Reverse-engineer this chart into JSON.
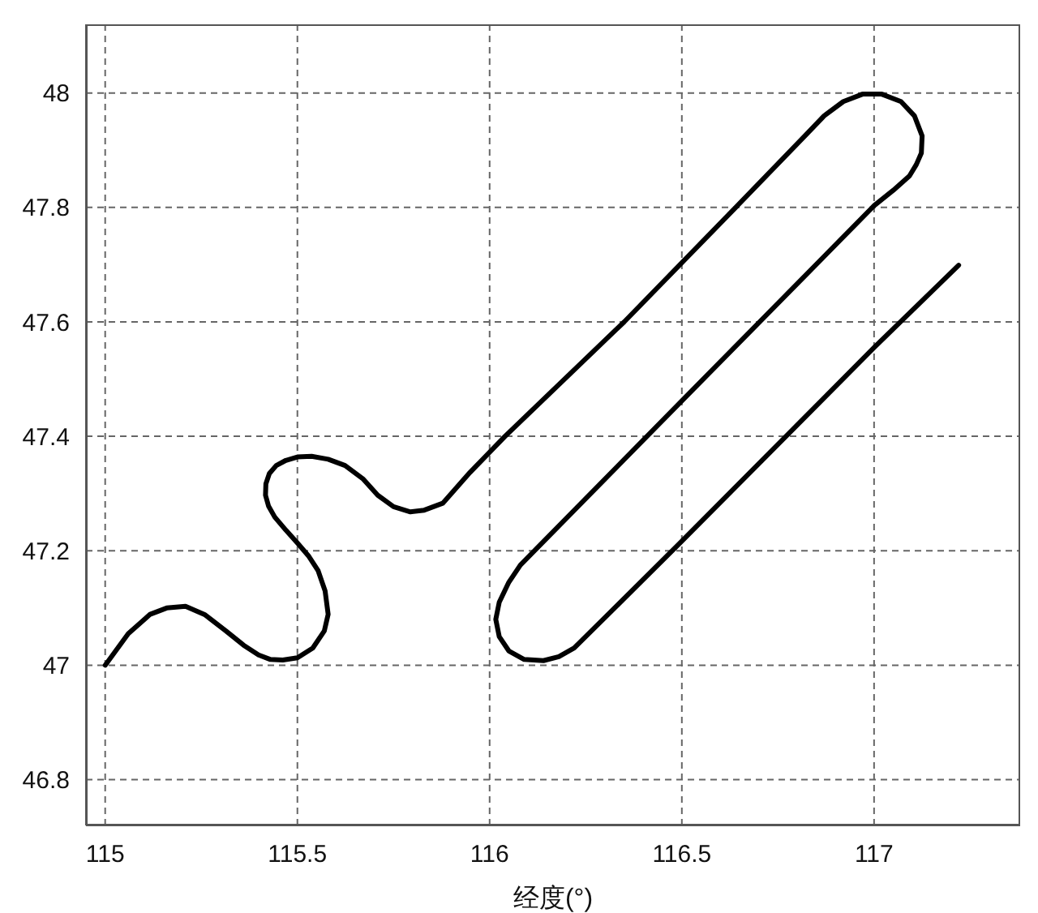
{
  "chart_data": {
    "type": "line",
    "xlabel": "经度(°)",
    "color": "#000000",
    "marker": "none",
    "line_style": "solid",
    "grid": true,
    "x": [
      115.0,
      115.06,
      115.117,
      115.16,
      115.209,
      115.26,
      115.314,
      115.36,
      115.399,
      115.43,
      115.462,
      115.5,
      115.54,
      115.57,
      115.58,
      115.572,
      115.554,
      115.53,
      115.502,
      115.47,
      115.441,
      115.425,
      115.417,
      115.418,
      115.427,
      115.445,
      115.47,
      115.5,
      115.537,
      115.58,
      115.624,
      115.67,
      115.709,
      115.75,
      115.794,
      115.83,
      115.878,
      115.949,
      116.04,
      116.35,
      116.64,
      116.82,
      116.87,
      116.92,
      116.97,
      117.02,
      117.07,
      117.105,
      117.125,
      117.123,
      117.11,
      117.092,
      117.05,
      117.0,
      116.5,
      116.08,
      116.05,
      116.025,
      116.016,
      116.025,
      116.05,
      116.09,
      116.14,
      116.18,
      116.22,
      116.49,
      117.0,
      117.22
    ],
    "values": [
      47.0,
      47.055,
      47.089,
      47.1,
      47.103,
      47.088,
      47.06,
      47.035,
      47.018,
      47.01,
      47.009,
      47.013,
      47.03,
      47.06,
      47.089,
      47.13,
      47.165,
      47.19,
      47.212,
      47.236,
      47.259,
      47.278,
      47.297,
      47.317,
      47.335,
      47.349,
      47.358,
      47.364,
      47.365,
      47.36,
      47.349,
      47.326,
      47.297,
      47.277,
      47.268,
      47.271,
      47.283,
      47.337,
      47.4,
      47.6,
      47.8,
      47.925,
      47.96,
      47.985,
      47.998,
      47.998,
      47.985,
      47.96,
      47.925,
      47.895,
      47.875,
      47.855,
      47.83,
      47.803,
      47.462,
      47.175,
      47.145,
      47.11,
      47.08,
      47.05,
      47.025,
      47.01,
      47.008,
      47.015,
      47.03,
      47.21,
      47.555,
      47.699
    ],
    "xlim": [
      114.95,
      117.38
    ],
    "xticks": [
      115,
      115.5,
      116,
      116.5,
      117
    ],
    "ylim": [
      46.72,
      48.12
    ],
    "yticks": [
      46.8,
      47,
      47.2,
      47.4,
      47.6,
      47.8,
      48
    ]
  }
}
